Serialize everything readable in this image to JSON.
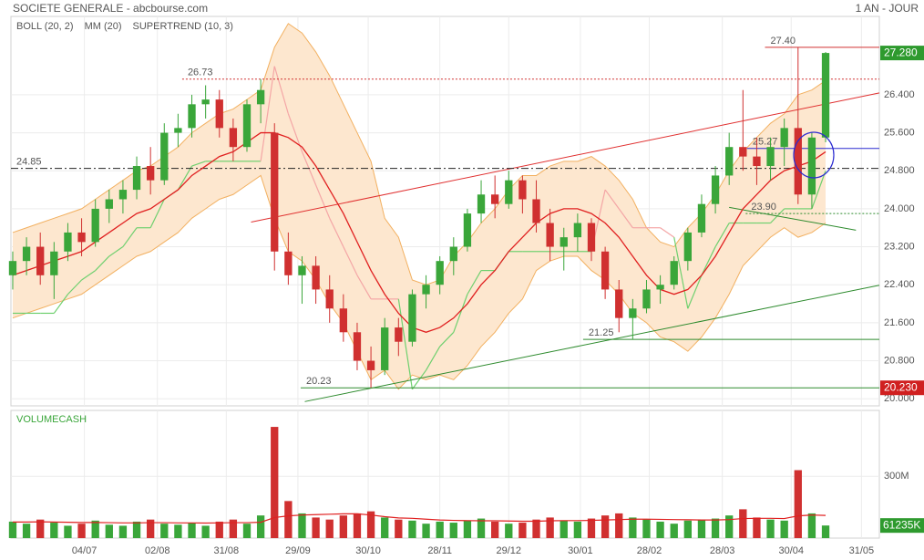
{
  "chart_data": [
    {
      "type": "candlestick",
      "title": "SOCIETE GENERALE - abcbourse.com",
      "subtitle": "1 AN - JOUR",
      "xlim": [
        -0.13,
        62.9
      ],
      "ylim": [
        19.85,
        28.05
      ],
      "yticks": [
        {
          "value": 20,
          "label": "20.000"
        },
        {
          "value": 20.8,
          "label": "20.800"
        },
        {
          "value": 21.6,
          "label": "21.600"
        },
        {
          "value": 22.4,
          "label": "22.400"
        },
        {
          "value": 23.2,
          "label": "23.200"
        },
        {
          "value": 24,
          "label": "24.000"
        },
        {
          "value": 24.8,
          "label": "24.800"
        },
        {
          "value": 25.6,
          "label": "25.600"
        },
        {
          "value": 26.4,
          "label": "26.400"
        }
      ],
      "grid": true,
      "up_color": "#3aa63a",
      "down_color": "#d03030",
      "candles": [
        [
          22.6,
          23.1,
          22.3,
          22.9
        ],
        [
          22.9,
          23.4,
          22.6,
          23.2
        ],
        [
          23.2,
          23.5,
          22.4,
          22.6
        ],
        [
          22.6,
          23.3,
          22.1,
          23.1
        ],
        [
          23.1,
          23.7,
          22.9,
          23.5
        ],
        [
          23.5,
          23.8,
          23.0,
          23.3
        ],
        [
          23.3,
          24.2,
          23.2,
          24.0
        ],
        [
          24.0,
          24.4,
          23.7,
          24.2
        ],
        [
          24.2,
          24.6,
          23.9,
          24.4
        ],
        [
          24.4,
          25.1,
          24.2,
          24.9
        ],
        [
          24.9,
          25.3,
          24.3,
          24.6
        ],
        [
          24.6,
          25.8,
          24.5,
          25.6
        ],
        [
          25.6,
          26.0,
          25.3,
          25.7
        ],
        [
          25.7,
          26.4,
          25.5,
          26.2
        ],
        [
          26.2,
          26.6,
          25.9,
          26.3
        ],
        [
          26.3,
          26.5,
          25.5,
          25.7
        ],
        [
          25.7,
          25.9,
          25.0,
          25.3
        ],
        [
          25.3,
          26.3,
          25.2,
          26.2
        ],
        [
          26.2,
          26.73,
          25.8,
          26.5
        ],
        [
          25.6,
          25.8,
          22.7,
          23.1
        ],
        [
          23.1,
          23.5,
          22.4,
          22.6
        ],
        [
          22.6,
          23.0,
          22.0,
          22.8
        ],
        [
          22.8,
          23.0,
          22.0,
          22.3
        ],
        [
          22.3,
          22.6,
          21.6,
          21.9
        ],
        [
          21.9,
          22.2,
          21.2,
          21.4
        ],
        [
          21.4,
          21.6,
          20.6,
          20.8
        ],
        [
          20.8,
          21.1,
          20.23,
          20.6
        ],
        [
          20.6,
          21.7,
          20.5,
          21.5
        ],
        [
          21.5,
          21.7,
          20.9,
          21.2
        ],
        [
          21.2,
          22.3,
          21.1,
          22.2
        ],
        [
          22.2,
          22.6,
          21.9,
          22.4
        ],
        [
          22.4,
          23.0,
          22.2,
          22.9
        ],
        [
          22.9,
          23.4,
          22.6,
          23.2
        ],
        [
          23.2,
          24.0,
          23.1,
          23.9
        ],
        [
          23.9,
          24.6,
          23.7,
          24.3
        ],
        [
          24.3,
          24.7,
          23.8,
          24.1
        ],
        [
          24.1,
          24.8,
          24.0,
          24.6
        ],
        [
          24.6,
          24.7,
          23.9,
          24.2
        ],
        [
          24.2,
          24.6,
          23.5,
          23.7
        ],
        [
          23.7,
          24.0,
          22.9,
          23.2
        ],
        [
          23.2,
          23.6,
          22.7,
          23.4
        ],
        [
          23.4,
          23.9,
          23.1,
          23.7
        ],
        [
          23.7,
          23.8,
          22.9,
          23.1
        ],
        [
          23.1,
          23.2,
          22.1,
          22.3
        ],
        [
          22.3,
          22.5,
          21.4,
          21.7
        ],
        [
          21.7,
          22.1,
          21.25,
          21.9
        ],
        [
          21.9,
          22.5,
          21.8,
          22.3
        ],
        [
          22.3,
          22.6,
          22.0,
          22.4
        ],
        [
          22.4,
          23.0,
          22.3,
          22.9
        ],
        [
          22.9,
          23.6,
          22.7,
          23.5
        ],
        [
          23.5,
          24.3,
          23.4,
          24.1
        ],
        [
          24.1,
          24.9,
          23.9,
          24.7
        ],
        [
          24.7,
          25.6,
          24.5,
          25.3
        ],
        [
          25.3,
          26.5,
          24.8,
          25.1
        ],
        [
          25.1,
          25.5,
          24.5,
          24.9
        ],
        [
          24.9,
          25.5,
          24.6,
          25.3
        ],
        [
          25.3,
          25.9,
          24.9,
          25.7
        ],
        [
          25.7,
          27.4,
          24.1,
          24.3
        ],
        [
          24.3,
          25.6,
          24.0,
          25.5
        ],
        [
          25.5,
          27.3,
          25.4,
          27.28
        ]
      ],
      "bollinger": {
        "name": "BOLL (20, 2)",
        "color": "#f2b060",
        "fill": "#fde7cf",
        "upper": [
          23.5,
          23.6,
          23.7,
          23.8,
          23.9,
          24.0,
          24.2,
          24.4,
          24.6,
          24.8,
          24.9,
          25.1,
          25.3,
          25.6,
          25.8,
          26.0,
          26.1,
          26.3,
          26.5,
          27.4,
          27.9,
          27.7,
          27.3,
          26.8,
          26.2,
          25.6,
          25.0,
          23.8,
          23.4,
          22.5,
          22.4,
          22.5,
          23.0,
          23.3,
          23.7,
          24.0,
          24.4,
          24.7,
          24.7,
          24.9,
          25.0,
          25.0,
          25.1,
          24.9,
          24.6,
          24.2,
          23.6,
          23.3,
          23.2,
          23.6,
          23.9,
          24.3,
          24.8,
          25.2,
          25.5,
          25.8,
          26.0,
          26.4,
          26.5,
          26.7
        ],
        "lower": [
          21.7,
          21.8,
          21.9,
          22.0,
          22.1,
          22.2,
          22.4,
          22.6,
          22.8,
          23.0,
          23.1,
          23.3,
          23.5,
          23.8,
          24.0,
          24.2,
          24.3,
          24.5,
          24.7,
          23.8,
          23.1,
          22.9,
          22.5,
          22.0,
          21.6,
          21.0,
          20.4,
          20.6,
          20.2,
          20.5,
          20.4,
          20.5,
          20.4,
          20.7,
          21.1,
          21.4,
          21.8,
          22.1,
          22.7,
          22.9,
          23.0,
          23.0,
          22.7,
          22.5,
          22.2,
          21.8,
          21.6,
          21.3,
          21.2,
          21.0,
          21.3,
          21.7,
          22.2,
          22.8,
          23.1,
          23.4,
          23.6,
          23.4,
          23.5,
          23.7
        ]
      },
      "ma": {
        "name": "MM (20)",
        "color": "#e02020",
        "values": [
          22.6,
          22.7,
          22.8,
          22.9,
          23.0,
          23.1,
          23.3,
          23.5,
          23.7,
          23.9,
          24.0,
          24.2,
          24.4,
          24.7,
          24.9,
          25.1,
          25.2,
          25.4,
          25.6,
          25.6,
          25.5,
          25.3,
          24.9,
          24.4,
          23.9,
          23.3,
          22.7,
          22.2,
          21.8,
          21.5,
          21.4,
          21.5,
          21.7,
          22.0,
          22.4,
          22.7,
          23.1,
          23.4,
          23.7,
          23.9,
          24.0,
          24.0,
          23.9,
          23.7,
          23.4,
          23.0,
          22.6,
          22.3,
          22.2,
          22.3,
          22.6,
          23.0,
          23.5,
          24.0,
          24.3,
          24.6,
          24.8,
          24.9,
          25.0,
          25.2
        ]
      },
      "supertrend": {
        "name": "SUPERTREND (10, 3)",
        "color": "#f4a6a6",
        "color_up": "#6fd06f",
        "color_down": "#f4a6a6",
        "values": [
          21.8,
          21.8,
          21.8,
          21.8,
          22.2,
          22.5,
          22.7,
          23.0,
          23.2,
          23.6,
          23.6,
          24.2,
          24.4,
          24.9,
          25.0,
          25.0,
          25.0,
          25.0,
          25.0,
          27.0,
          26.0,
          25.2,
          24.5,
          23.8,
          23.2,
          22.6,
          22.1,
          22.1,
          22.1,
          20.2,
          20.6,
          21.1,
          21.4,
          22.2,
          22.7,
          22.7,
          23.1,
          23.1,
          23.1,
          23.1,
          23.1,
          23.1,
          23.1,
          24.4,
          24.0,
          23.6,
          23.6,
          23.6,
          23.4,
          21.9,
          22.6,
          23.2,
          23.7,
          23.7,
          23.7,
          23.7,
          24.0,
          24.0,
          24.0,
          24.8
        ]
      },
      "levels": [
        {
          "value": 27.4,
          "label": "27.40",
          "x_start": 54.6,
          "color": "#d03030",
          "style": "solid"
        },
        {
          "value": 26.73,
          "label": "26.73",
          "x_start": 12.3,
          "color": "#d03030",
          "style": "dotted"
        },
        {
          "value": 25.27,
          "label": "25.27",
          "x_start": 53.3,
          "color": "#2a2ad0",
          "style": "solid"
        },
        {
          "value": 24.85,
          "label": "24.85",
          "x_start": -0.13,
          "color": "#222222",
          "style": "dashdot"
        },
        {
          "value": 23.9,
          "label": "23.90",
          "x_start": 53.2,
          "color": "#2e8b2e",
          "style": "dotted"
        },
        {
          "value": 21.25,
          "label": "21.25",
          "x_start": 41.4,
          "color": "#2e8b2e",
          "style": "solid"
        },
        {
          "value": 20.23,
          "label": "20.23",
          "x_start": 20.9,
          "color": "#2e8b2e",
          "style": "solid"
        }
      ],
      "trendlines": [
        {
          "x": [
            17.3,
            62.9
          ],
          "y": [
            23.72,
            26.44
          ],
          "color": "#e03030"
        },
        {
          "x": [
            21.2,
            62.9
          ],
          "y": [
            19.94,
            22.39
          ],
          "color": "#2e8b2e"
        },
        {
          "x": [
            52.0,
            61.2
          ],
          "y": [
            24.03,
            23.55
          ],
          "color": "#2e8b2e"
        }
      ],
      "price_tags": [
        {
          "value": 27.28,
          "label": "27.280",
          "color": "#2e9a2e"
        },
        {
          "value": 20.23,
          "label": "20.230",
          "color": "#d02020"
        }
      ]
    },
    {
      "type": "bar",
      "title": "VOLUMECASH",
      "xlim": [
        -0.13,
        62.9
      ],
      "ylim": [
        0,
        620000000
      ],
      "yticks": [
        {
          "value": 300000000,
          "label": "300M"
        }
      ],
      "xticks": [
        {
          "value": 5.2,
          "label": "04/07"
        },
        {
          "value": 10.5,
          "label": "02/08"
        },
        {
          "value": 15.5,
          "label": "31/08"
        },
        {
          "value": 20.7,
          "label": "29/09"
        },
        {
          "value": 25.8,
          "label": "30/10"
        },
        {
          "value": 31.0,
          "label": "28/11"
        },
        {
          "value": 36.0,
          "label": "29/12"
        },
        {
          "value": 41.2,
          "label": "30/01"
        },
        {
          "value": 46.2,
          "label": "28/02"
        },
        {
          "value": 51.5,
          "label": "28/03"
        },
        {
          "value": 56.5,
          "label": "30/04"
        },
        {
          "value": 61.6,
          "label": "31/05"
        }
      ],
      "values": [
        80000000,
        70000000,
        90000000,
        75000000,
        60000000,
        70000000,
        85000000,
        65000000,
        60000000,
        80000000,
        90000000,
        70000000,
        65000000,
        75000000,
        60000000,
        80000000,
        90000000,
        70000000,
        110000000,
        540000000,
        180000000,
        120000000,
        100000000,
        90000000,
        110000000,
        120000000,
        130000000,
        100000000,
        90000000,
        85000000,
        70000000,
        80000000,
        75000000,
        85000000,
        95000000,
        80000000,
        70000000,
        75000000,
        90000000,
        100000000,
        85000000,
        80000000,
        95000000,
        110000000,
        120000000,
        100000000,
        90000000,
        80000000,
        70000000,
        85000000,
        90000000,
        95000000,
        110000000,
        140000000,
        100000000,
        90000000,
        85000000,
        330000000,
        120000000,
        61235000
      ],
      "value_labels": [
        null,
        null,
        null,
        null,
        null,
        null,
        null,
        null,
        null,
        null,
        null,
        null,
        null,
        null,
        null,
        null,
        null,
        null,
        null,
        null,
        null,
        null,
        null,
        null,
        null,
        null,
        null,
        null,
        null,
        null,
        null,
        null,
        null,
        null,
        null,
        null,
        null,
        null,
        null,
        null,
        null,
        null,
        null,
        null,
        null,
        null,
        null,
        null,
        null,
        null,
        null,
        null,
        null,
        null,
        null,
        null,
        null,
        null,
        null,
        "61235K"
      ],
      "tag_color": "#2e9a2e",
      "ma_color": "#e02020",
      "ma_values": [
        78000000,
        78000000,
        79000000,
        78000000,
        77000000,
        76000000,
        76000000,
        75000000,
        74000000,
        74000000,
        75000000,
        75000000,
        74000000,
        74000000,
        73000000,
        74000000,
        75000000,
        75000000,
        77000000,
        100000000,
        108000000,
        112000000,
        114000000,
        116000000,
        118000000,
        118000000,
        112000000,
        104000000,
        98000000,
        96000000,
        92000000,
        88000000,
        86000000,
        85000000,
        84000000,
        84000000,
        83000000,
        82000000,
        82000000,
        84000000,
        85000000,
        85000000,
        86000000,
        88000000,
        90000000,
        92000000,
        92000000,
        91000000,
        90000000,
        89000000,
        88000000,
        88000000,
        90000000,
        95000000,
        96000000,
        96000000,
        95000000,
        108000000,
        112000000,
        110000000
      ]
    }
  ]
}
